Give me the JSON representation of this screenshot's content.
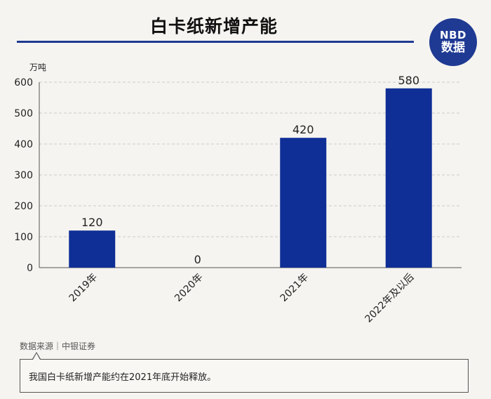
{
  "title": "白卡纸新增产能",
  "logo": {
    "top": "NBD",
    "bottom": "数据"
  },
  "source": "数据来源｜中银证券",
  "note": "我国白卡纸新增产能约在2021年底开始释放。",
  "colors": {
    "bar": "#0f2f96",
    "accent": "#1f3a93",
    "grid": "#cccccc"
  },
  "chart_data": {
    "type": "bar",
    "title": "白卡纸新增产能",
    "ylabel": "万吨",
    "xlabel": "",
    "categories": [
      "2019年",
      "2020年",
      "2021年",
      "2022年及以后"
    ],
    "values": [
      120,
      0,
      420,
      580
    ],
    "data_labels": [
      "120",
      "0",
      "420",
      "580"
    ],
    "ylim": [
      0,
      600
    ],
    "yticks": [
      0,
      100,
      200,
      300,
      400,
      500,
      600
    ],
    "grid": true
  }
}
